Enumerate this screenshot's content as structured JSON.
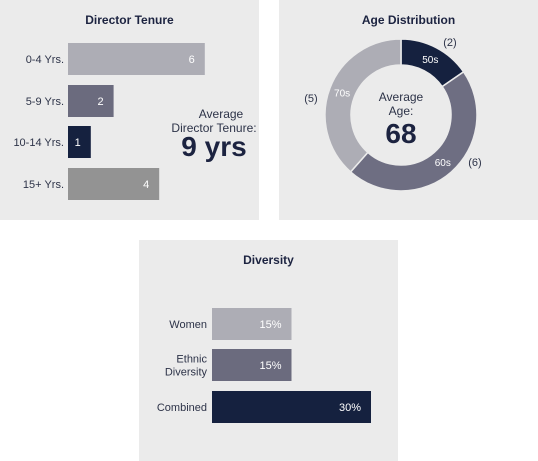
{
  "chart_data": [
    {
      "type": "bar",
      "orientation": "horizontal",
      "title": "Director Tenure",
      "categories": [
        "0-4 Yrs.",
        "5-9 Yrs.",
        "10-14 Yrs.",
        "15+ Yrs."
      ],
      "values": [
        6,
        2,
        1,
        4
      ],
      "colors": [
        "#adadb5",
        "#6b6b7e",
        "#15213f",
        "#939393"
      ],
      "annotation": {
        "label_line1": "Average",
        "label_line2": "Director Tenure:",
        "value": "9 yrs"
      }
    },
    {
      "type": "pie",
      "variant": "donut",
      "title": "Age Distribution",
      "slices": [
        {
          "label": "50s",
          "value": 2,
          "count_label": "(2)",
          "color": "#15213f"
        },
        {
          "label": "60s",
          "value": 6,
          "count_label": "(6)",
          "color": "#6e6e82"
        },
        {
          "label": "70s",
          "value": 5,
          "count_label": "(5)",
          "color": "#adadb5"
        }
      ],
      "center": {
        "line1": "Average",
        "line2": "Age:",
        "value": "68"
      }
    },
    {
      "type": "bar",
      "orientation": "horizontal",
      "title": "Diversity",
      "categories": [
        [
          "Women"
        ],
        [
          "Ethnic",
          "Diversity"
        ],
        [
          "Combined"
        ]
      ],
      "values": [
        15,
        15,
        30
      ],
      "value_labels": [
        "15%",
        "15%",
        "30%"
      ],
      "colors": [
        "#adadb5",
        "#6b6b7e",
        "#15213f"
      ]
    }
  ]
}
